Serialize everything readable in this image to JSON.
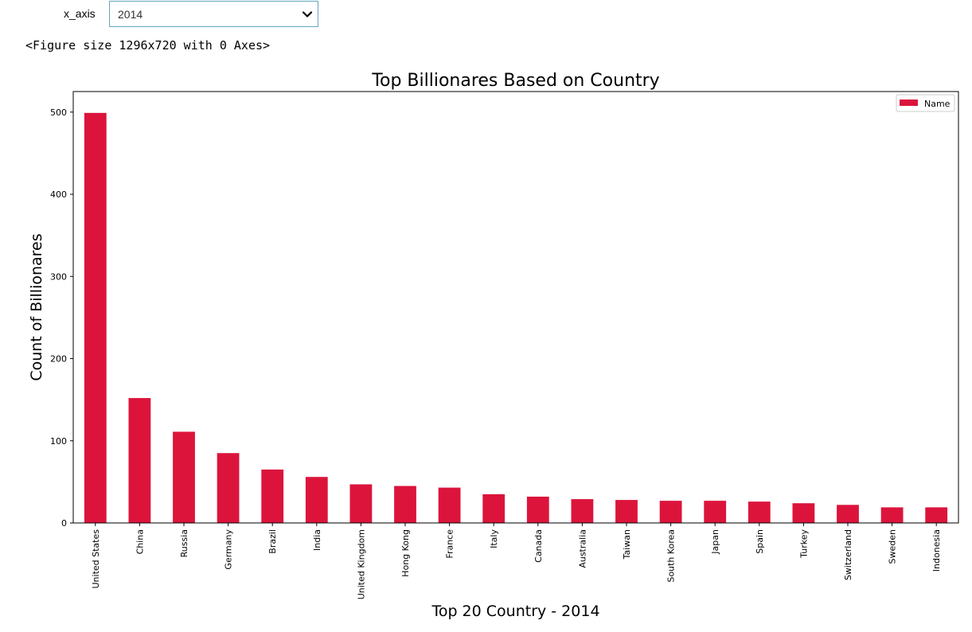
{
  "widget": {
    "label": "x_axis",
    "selected": "2014",
    "chevron_icon": "chevron-down-icon"
  },
  "output": {
    "figure_repr": "<Figure size 1296x720 with 0 Axes>"
  },
  "chart_data": {
    "type": "bar",
    "title": "Top Billionares Based on Country",
    "xlabel": "Top 20 Country - 2014",
    "ylabel": "Count of Billionares",
    "categories": [
      "United States",
      "China",
      "Russia",
      "Germany",
      "Brazil",
      "India",
      "United Kingdom",
      "Hong Kong",
      "France",
      "Italy",
      "Canada",
      "Australia",
      "Taiwan",
      "South Korea",
      "Japan",
      "Spain",
      "Turkey",
      "Switzerland",
      "Sweden",
      "Indonesia"
    ],
    "series": [
      {
        "name": "Name",
        "color": "#dc143c",
        "values": [
          499,
          152,
          111,
          85,
          65,
          56,
          47,
          45,
          43,
          35,
          32,
          29,
          28,
          27,
          27,
          26,
          24,
          22,
          19,
          19
        ]
      }
    ],
    "yticks": [
      0,
      100,
      200,
      300,
      400,
      500
    ],
    "ylim": [
      0,
      525
    ],
    "grid": false,
    "legend_position": "top-right"
  }
}
